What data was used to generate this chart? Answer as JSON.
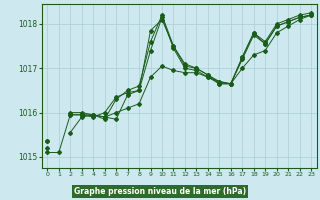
{
  "xlabel": "Graphe pression niveau de la mer (hPa)",
  "ylim": [
    1014.75,
    1018.45
  ],
  "xlim": [
    -0.5,
    23.5
  ],
  "yticks": [
    1015,
    1016,
    1017,
    1018
  ],
  "xticks": [
    0,
    1,
    2,
    3,
    4,
    5,
    6,
    7,
    8,
    9,
    10,
    11,
    12,
    13,
    14,
    15,
    16,
    17,
    18,
    19,
    20,
    21,
    22,
    23
  ],
  "bg_color": "#cde8ee",
  "line_color": "#1a5c1a",
  "grid_color": "#aacdd5",
  "xlabel_bg": "#2d6b2d",
  "xlabel_fg": "#ffffff",
  "series": [
    [
      1015.35,
      null,
      1015.55,
      1015.9,
      1015.95,
      1015.9,
      1015.85,
      1016.4,
      1016.5,
      1017.85,
      1018.1,
      1017.5,
      1017.05,
      1017.0,
      1016.85,
      1016.65,
      1016.65,
      1017.2,
      1017.75,
      1017.55,
      1017.95,
      1018.05,
      1018.15,
      1018.2
    ],
    [
      1015.1,
      1015.1,
      1015.95,
      1015.95,
      1015.95,
      1015.85,
      1016.3,
      1016.5,
      1016.6,
      1017.6,
      1018.2,
      1017.5,
      1017.1,
      1017.0,
      1016.85,
      1016.7,
      1016.65,
      1017.25,
      1017.8,
      1017.6,
      1018.0,
      1018.1,
      1018.2,
      1018.25
    ],
    [
      1015.35,
      null,
      1015.95,
      1015.95,
      1015.9,
      1016.0,
      1016.35,
      1016.45,
      1016.5,
      1017.4,
      1018.15,
      1017.45,
      1017.0,
      1016.95,
      1016.8,
      1016.65,
      1016.65,
      1017.25,
      1017.8,
      1017.55,
      1017.95,
      1018.05,
      1018.15,
      1018.2
    ],
    [
      1015.2,
      null,
      1016.0,
      1016.0,
      1015.95,
      1015.9,
      1016.0,
      1016.1,
      1016.2,
      1016.8,
      1017.05,
      1016.95,
      1016.9,
      1016.9,
      1016.8,
      1016.7,
      1016.65,
      1017.0,
      1017.3,
      1017.4,
      1017.8,
      1017.95,
      1018.1,
      1018.2
    ]
  ]
}
